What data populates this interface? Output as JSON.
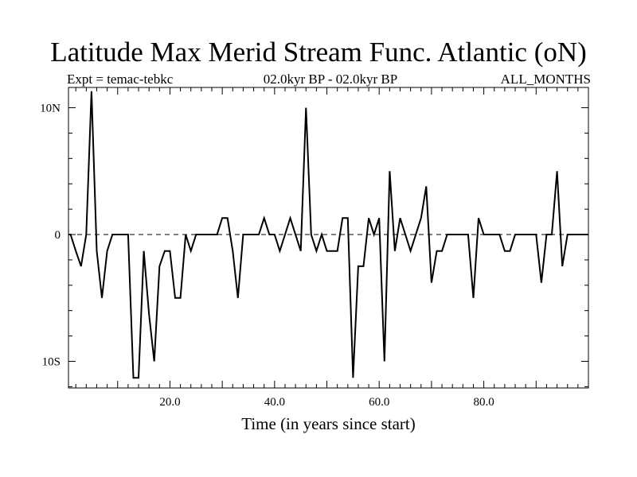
{
  "chart_data": {
    "type": "line",
    "title": "Latitude Max Merid Stream Func. Atlantic (oN)",
    "subtitle_left": "Expt = temac-tebkc",
    "subtitle_center": "02.0kyr BP - 02.0kyr BP",
    "subtitle_right": "ALL_MONTHS",
    "xlabel": "Time (in years since start)",
    "ylabel": "",
    "xlim": [
      0,
      100
    ],
    "ylim": [
      -12,
      12
    ],
    "x_ticks": [
      20,
      40,
      60,
      80
    ],
    "x_tick_labels": [
      "20.0",
      "40.0",
      "60.0",
      "80.0"
    ],
    "y_ticks": [
      10,
      0,
      -10
    ],
    "y_tick_labels": [
      "10N",
      "0",
      "10S"
    ],
    "zero_line": true,
    "grid": false,
    "series": [
      {
        "name": "temac-tebkc",
        "x": [
          0,
          1,
          2,
          3,
          4,
          5,
          6,
          7,
          8,
          9,
          10,
          11,
          12,
          13,
          14,
          15,
          16,
          17,
          18,
          19,
          20,
          21,
          22,
          23,
          24,
          25,
          26,
          27,
          28,
          29,
          30,
          31,
          32,
          33,
          34,
          35,
          36,
          37,
          38,
          39,
          40,
          41,
          42,
          43,
          44,
          45,
          46,
          47,
          48,
          49,
          50,
          51,
          52,
          53,
          54,
          55,
          56,
          57,
          58,
          59,
          60,
          61,
          62,
          63,
          64,
          65,
          66,
          67,
          68,
          69,
          70,
          71,
          72,
          73,
          74,
          75,
          76,
          77,
          78,
          79,
          80,
          81,
          82,
          83,
          84,
          85,
          86,
          87,
          88,
          89,
          90,
          91,
          92,
          93,
          94,
          95,
          96,
          97,
          98,
          99,
          100
        ],
        "values": [
          0,
          0,
          -1.3,
          -2.5,
          0,
          11.3,
          -1.3,
          -5,
          -1.3,
          0,
          0,
          0,
          0,
          -11.3,
          -11.3,
          -1.3,
          -6.3,
          -10,
          -2.5,
          -1.3,
          -1.3,
          -5,
          -5,
          0,
          -1.3,
          0,
          0,
          0,
          0,
          0,
          1.3,
          1.3,
          -1.3,
          -5,
          0,
          0,
          0,
          0,
          1.3,
          0,
          0,
          -1.3,
          0,
          1.3,
          0,
          -1.3,
          10,
          0,
          -1.3,
          0,
          -1.3,
          -1.3,
          -1.3,
          1.3,
          1.3,
          -11.3,
          -2.5,
          -2.5,
          1.3,
          0,
          1.3,
          -10,
          5,
          -1.3,
          1.3,
          0,
          -1.3,
          0,
          1.3,
          3.8,
          -3.8,
          -1.3,
          -1.3,
          0,
          0,
          0,
          0,
          0,
          -5,
          1.3,
          0,
          0,
          0,
          0,
          -1.3,
          -1.3,
          0,
          0,
          0,
          0,
          0,
          -3.8,
          0,
          0,
          5,
          -2.5,
          0,
          0,
          0,
          0,
          0
        ]
      }
    ]
  }
}
